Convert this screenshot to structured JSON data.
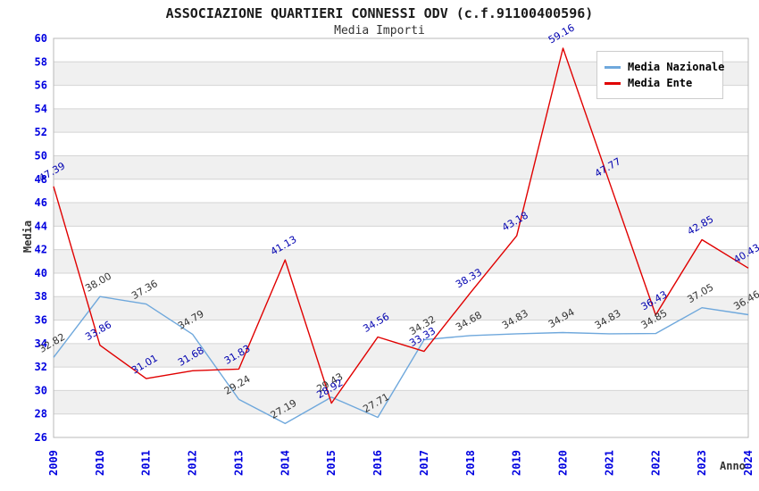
{
  "chart_data": {
    "type": "line",
    "title": "ASSOCIAZIONE QUARTIERI CONNESSI ODV (c.f.91100400596)",
    "subtitle": "Media Importi",
    "xlabel": "Anno",
    "ylabel": "Media",
    "ylim": [
      26,
      60
    ],
    "ytick_step": 2,
    "grid": "horizontal-bands",
    "legend_position": "top-right",
    "categories": [
      "2009",
      "2010",
      "2011",
      "2012",
      "2013",
      "2014",
      "2015",
      "2016",
      "2017",
      "2018",
      "2019",
      "2020",
      "2021",
      "2022",
      "2023",
      "2024"
    ],
    "series": [
      {
        "name": "Media Nazionale",
        "color": "#6fa8dc",
        "label_color": "#333333",
        "values": [
          32.82,
          38.0,
          37.36,
          34.79,
          29.24,
          27.19,
          29.43,
          27.71,
          34.32,
          34.68,
          34.83,
          34.94,
          34.83,
          34.85,
          37.05,
          36.46
        ]
      },
      {
        "name": "Media Ente",
        "color": "#e00000",
        "label_color": "#0000b0",
        "values": [
          47.39,
          33.86,
          31.01,
          31.68,
          31.83,
          41.13,
          28.92,
          34.56,
          33.33,
          38.33,
          43.18,
          59.16,
          47.77,
          36.43,
          42.85,
          40.43
        ]
      }
    ],
    "colors": {
      "tick_label": "#0000e0",
      "grid_line": "#d4d4d4",
      "band_fill": "#f0f0f0",
      "plot_border": "#b8b8b8",
      "plot_background": "#ffffff"
    }
  }
}
